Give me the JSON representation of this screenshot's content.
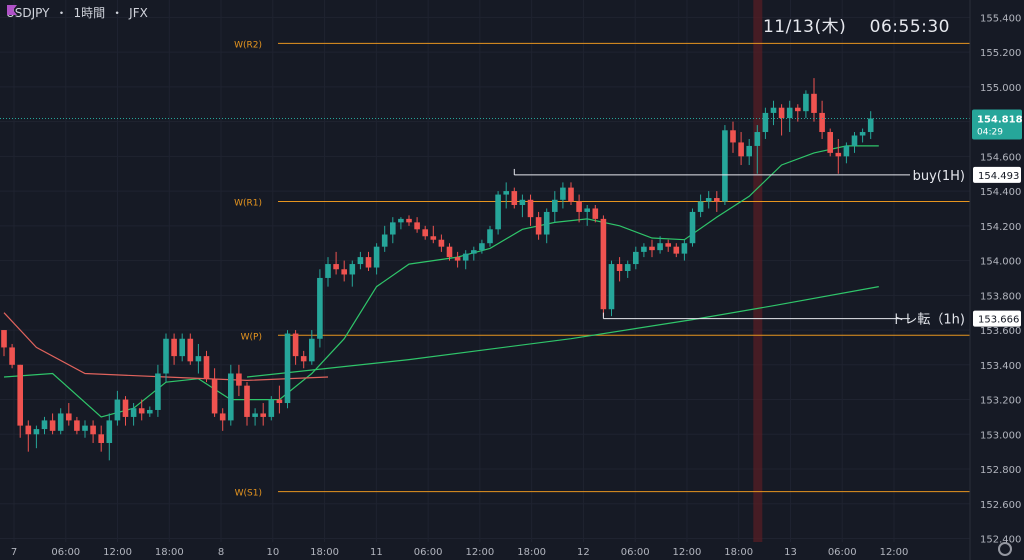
{
  "header": {
    "symbol": "USDJPY",
    "timeframe": "1時間",
    "source": "JFX",
    "separator": "・"
  },
  "clock": "11/13(木)　 06:55:30",
  "colors": {
    "bg": "#161a25",
    "up": "#26a69a",
    "down": "#ef5350",
    "grid": "#1f2330",
    "axis_text": "#b2b5be",
    "pivot": "#e6951f",
    "ma_fast": "#2fc56a",
    "ma_mid": "#e0635d",
    "ma_slow": "#2fc56a",
    "flag": "#b052c8"
  },
  "chart_data": {
    "type": "candlestick",
    "symbol": "USDJPY",
    "interval": "1h",
    "ylim": [
      152.38,
      155.5
    ],
    "y_ticks": [
      "155.400",
      "155.200",
      "155.000",
      "154.800",
      "154.600",
      "154.400",
      "154.200",
      "154.000",
      "153.800",
      "153.600",
      "153.400",
      "153.200",
      "153.000",
      "152.800",
      "152.600",
      "152.400"
    ],
    "x_ticks": [
      "7",
      "06:00",
      "12:00",
      "18:00",
      "8",
      "10",
      "18:00",
      "11",
      "06:00",
      "12:00",
      "18:00",
      "12",
      "06:00",
      "12:00",
      "18:00",
      "13",
      "06:00",
      "12:00"
    ],
    "candles": [
      [
        153.6,
        153.6,
        153.45,
        153.5
      ],
      [
        153.5,
        153.52,
        153.38,
        153.4
      ],
      [
        153.4,
        153.4,
        152.98,
        153.05
      ],
      [
        153.05,
        153.08,
        152.9,
        153.0
      ],
      [
        153.0,
        153.05,
        152.92,
        153.03
      ],
      [
        153.03,
        153.1,
        153.0,
        153.08
      ],
      [
        153.08,
        153.12,
        153.0,
        153.02
      ],
      [
        153.02,
        153.15,
        153.0,
        153.12
      ],
      [
        153.12,
        153.18,
        153.05,
        153.08
      ],
      [
        153.08,
        153.1,
        153.0,
        153.02
      ],
      [
        153.02,
        153.08,
        152.98,
        153.05
      ],
      [
        153.05,
        153.08,
        152.95,
        153.0
      ],
      [
        153.0,
        153.05,
        152.9,
        152.95
      ],
      [
        152.95,
        153.12,
        152.85,
        153.08
      ],
      [
        153.08,
        153.25,
        153.05,
        153.2
      ],
      [
        153.2,
        153.22,
        153.05,
        153.1
      ],
      [
        153.1,
        153.18,
        153.05,
        153.15
      ],
      [
        153.15,
        153.2,
        153.08,
        153.12
      ],
      [
        153.12,
        153.16,
        153.1,
        153.14
      ],
      [
        153.14,
        153.4,
        153.1,
        153.35
      ],
      [
        153.35,
        153.58,
        153.3,
        153.55
      ],
      [
        153.55,
        153.58,
        153.4,
        153.45
      ],
      [
        153.45,
        153.58,
        153.42,
        153.55
      ],
      [
        153.55,
        153.58,
        153.4,
        153.42
      ],
      [
        153.42,
        153.52,
        153.35,
        153.45
      ],
      [
        153.45,
        153.48,
        153.3,
        153.32
      ],
      [
        153.32,
        153.38,
        153.1,
        153.12
      ],
      [
        153.12,
        153.15,
        153.02,
        153.08
      ],
      [
        153.08,
        153.4,
        153.05,
        153.35
      ],
      [
        153.35,
        153.4,
        153.22,
        153.28
      ],
      [
        153.28,
        153.3,
        153.05,
        153.1
      ],
      [
        153.1,
        153.15,
        153.05,
        153.12
      ],
      [
        153.12,
        153.18,
        153.05,
        153.1
      ],
      [
        153.1,
        153.22,
        153.08,
        153.2
      ],
      [
        153.2,
        153.28,
        153.12,
        153.18
      ],
      [
        153.18,
        153.6,
        153.15,
        153.58
      ],
      [
        153.58,
        153.6,
        153.4,
        153.45
      ],
      [
        153.45,
        153.48,
        153.38,
        153.42
      ],
      [
        153.42,
        153.6,
        153.4,
        153.55
      ],
      [
        153.55,
        153.95,
        153.5,
        153.9
      ],
      [
        153.9,
        154.02,
        153.85,
        153.98
      ],
      [
        153.98,
        154.05,
        153.92,
        153.95
      ],
      [
        153.95,
        154.0,
        153.88,
        153.92
      ],
      [
        153.92,
        154.0,
        153.85,
        153.98
      ],
      [
        153.98,
        154.05,
        153.95,
        154.02
      ],
      [
        154.02,
        154.05,
        153.94,
        153.96
      ],
      [
        153.96,
        154.1,
        153.92,
        154.08
      ],
      [
        154.08,
        154.2,
        154.05,
        154.15
      ],
      [
        154.15,
        154.25,
        154.1,
        154.22
      ],
      [
        154.22,
        154.25,
        154.18,
        154.24
      ],
      [
        154.24,
        154.26,
        154.2,
        154.22
      ],
      [
        154.22,
        154.25,
        154.16,
        154.18
      ],
      [
        154.18,
        154.2,
        154.12,
        154.14
      ],
      [
        154.14,
        154.2,
        154.1,
        154.12
      ],
      [
        154.12,
        154.15,
        154.05,
        154.08
      ],
      [
        154.08,
        154.1,
        154.0,
        154.02
      ],
      [
        154.02,
        154.05,
        153.96,
        154.0
      ],
      [
        154.0,
        154.06,
        153.95,
        154.04
      ],
      [
        154.04,
        154.08,
        154.0,
        154.06
      ],
      [
        154.06,
        154.12,
        154.04,
        154.1
      ],
      [
        154.1,
        154.2,
        154.08,
        154.18
      ],
      [
        154.18,
        154.4,
        154.15,
        154.38
      ],
      [
        154.38,
        154.45,
        154.3,
        154.4
      ],
      [
        154.4,
        154.42,
        154.3,
        154.32
      ],
      [
        154.32,
        154.38,
        154.25,
        154.35
      ],
      [
        154.35,
        154.38,
        154.2,
        154.25
      ],
      [
        154.25,
        154.28,
        154.12,
        154.15
      ],
      [
        154.15,
        154.3,
        154.1,
        154.28
      ],
      [
        154.28,
        154.4,
        154.22,
        154.35
      ],
      [
        154.35,
        154.45,
        154.3,
        154.42
      ],
      [
        154.42,
        154.45,
        154.32,
        154.34
      ],
      [
        154.34,
        154.38,
        154.22,
        154.28
      ],
      [
        154.28,
        154.32,
        154.2,
        154.3
      ],
      [
        154.3,
        154.32,
        154.22,
        154.24
      ],
      [
        154.24,
        154.26,
        153.68,
        153.72
      ],
      [
        153.72,
        154.0,
        153.68,
        153.98
      ],
      [
        153.98,
        154.02,
        153.88,
        153.94
      ],
      [
        153.94,
        154.0,
        153.9,
        153.98
      ],
      [
        153.98,
        154.08,
        153.95,
        154.05
      ],
      [
        154.05,
        154.1,
        154.02,
        154.08
      ],
      [
        154.08,
        154.12,
        154.02,
        154.06
      ],
      [
        154.06,
        154.14,
        154.04,
        154.1
      ],
      [
        154.1,
        154.12,
        154.05,
        154.08
      ],
      [
        154.08,
        154.1,
        154.02,
        154.04
      ],
      [
        154.04,
        154.12,
        154.0,
        154.1
      ],
      [
        154.1,
        154.3,
        154.08,
        154.28
      ],
      [
        154.28,
        154.38,
        154.25,
        154.34
      ],
      [
        154.34,
        154.4,
        154.3,
        154.36
      ],
      [
        154.36,
        154.4,
        154.28,
        154.34
      ],
      [
        154.34,
        154.78,
        154.32,
        154.75
      ],
      [
        154.75,
        154.8,
        154.62,
        154.68
      ],
      [
        154.68,
        154.74,
        154.55,
        154.6
      ],
      [
        154.6,
        154.7,
        154.55,
        154.66
      ],
      [
        154.66,
        154.78,
        154.5,
        154.74
      ],
      [
        154.74,
        154.88,
        154.7,
        154.85
      ],
      [
        154.85,
        154.92,
        154.78,
        154.88
      ],
      [
        154.88,
        154.9,
        154.72,
        154.82
      ],
      [
        154.82,
        154.92,
        154.74,
        154.88
      ],
      [
        154.88,
        154.9,
        154.8,
        154.86
      ],
      [
        154.86,
        154.98,
        154.82,
        154.96
      ],
      [
        154.96,
        155.05,
        154.8,
        154.85
      ],
      [
        154.85,
        154.92,
        154.7,
        154.74
      ],
      [
        154.74,
        154.76,
        154.6,
        154.62
      ],
      [
        154.62,
        154.7,
        154.5,
        154.6
      ],
      [
        154.6,
        154.68,
        154.56,
        154.66
      ],
      [
        154.66,
        154.74,
        154.62,
        154.72
      ],
      [
        154.72,
        154.76,
        154.68,
        154.74
      ],
      [
        154.74,
        154.86,
        154.7,
        154.818
      ]
    ],
    "indicators": [
      {
        "name": "SMA fast",
        "points": [
          [
            0,
            153.33
          ],
          [
            6,
            153.35
          ],
          [
            12,
            153.1
          ],
          [
            16,
            153.15
          ],
          [
            20,
            153.3
          ],
          [
            24,
            153.32
          ],
          [
            28,
            153.2
          ],
          [
            34,
            153.2
          ],
          [
            38,
            153.35
          ],
          [
            42,
            153.55
          ],
          [
            46,
            153.85
          ],
          [
            50,
            153.98
          ],
          [
            56,
            154.02
          ],
          [
            60,
            154.07
          ],
          [
            64,
            154.18
          ],
          [
            68,
            154.22
          ],
          [
            72,
            154.24
          ],
          [
            76,
            154.2
          ],
          [
            80,
            154.13
          ],
          [
            84,
            154.12
          ],
          [
            88,
            154.25
          ],
          [
            92,
            154.37
          ],
          [
            96,
            154.55
          ],
          [
            100,
            154.62
          ],
          [
            104,
            154.66
          ],
          [
            108,
            154.66
          ]
        ]
      },
      {
        "name": "SMA mid",
        "points": [
          [
            0,
            153.7
          ],
          [
            4,
            153.5
          ],
          [
            10,
            153.35
          ],
          [
            20,
            153.33
          ],
          [
            30,
            153.31
          ],
          [
            40,
            153.33
          ]
        ]
      },
      {
        "name": "SMA slow",
        "points": [
          [
            30,
            153.33
          ],
          [
            50,
            153.43
          ],
          [
            70,
            153.55
          ],
          [
            85,
            153.66
          ],
          [
            95,
            153.74
          ],
          [
            108,
            153.85
          ]
        ]
      }
    ],
    "levels": [
      {
        "label": "W(R2)",
        "value": 155.25
      },
      {
        "label": "W(R1)",
        "value": 154.34
      },
      {
        "label": "W(P)",
        "value": 153.57
      },
      {
        "label": "W(S1)",
        "value": 152.67
      }
    ],
    "annotations": [
      {
        "label": "buy(1H)",
        "price": "154.493",
        "value": 154.493,
        "from_index": 63
      },
      {
        "label": "トレ転（1h)",
        "price": "153.666",
        "value": 153.666,
        "from_index": 74
      }
    ],
    "last_price": "154.818",
    "countdown": "04:29",
    "highlight_index": 93
  }
}
